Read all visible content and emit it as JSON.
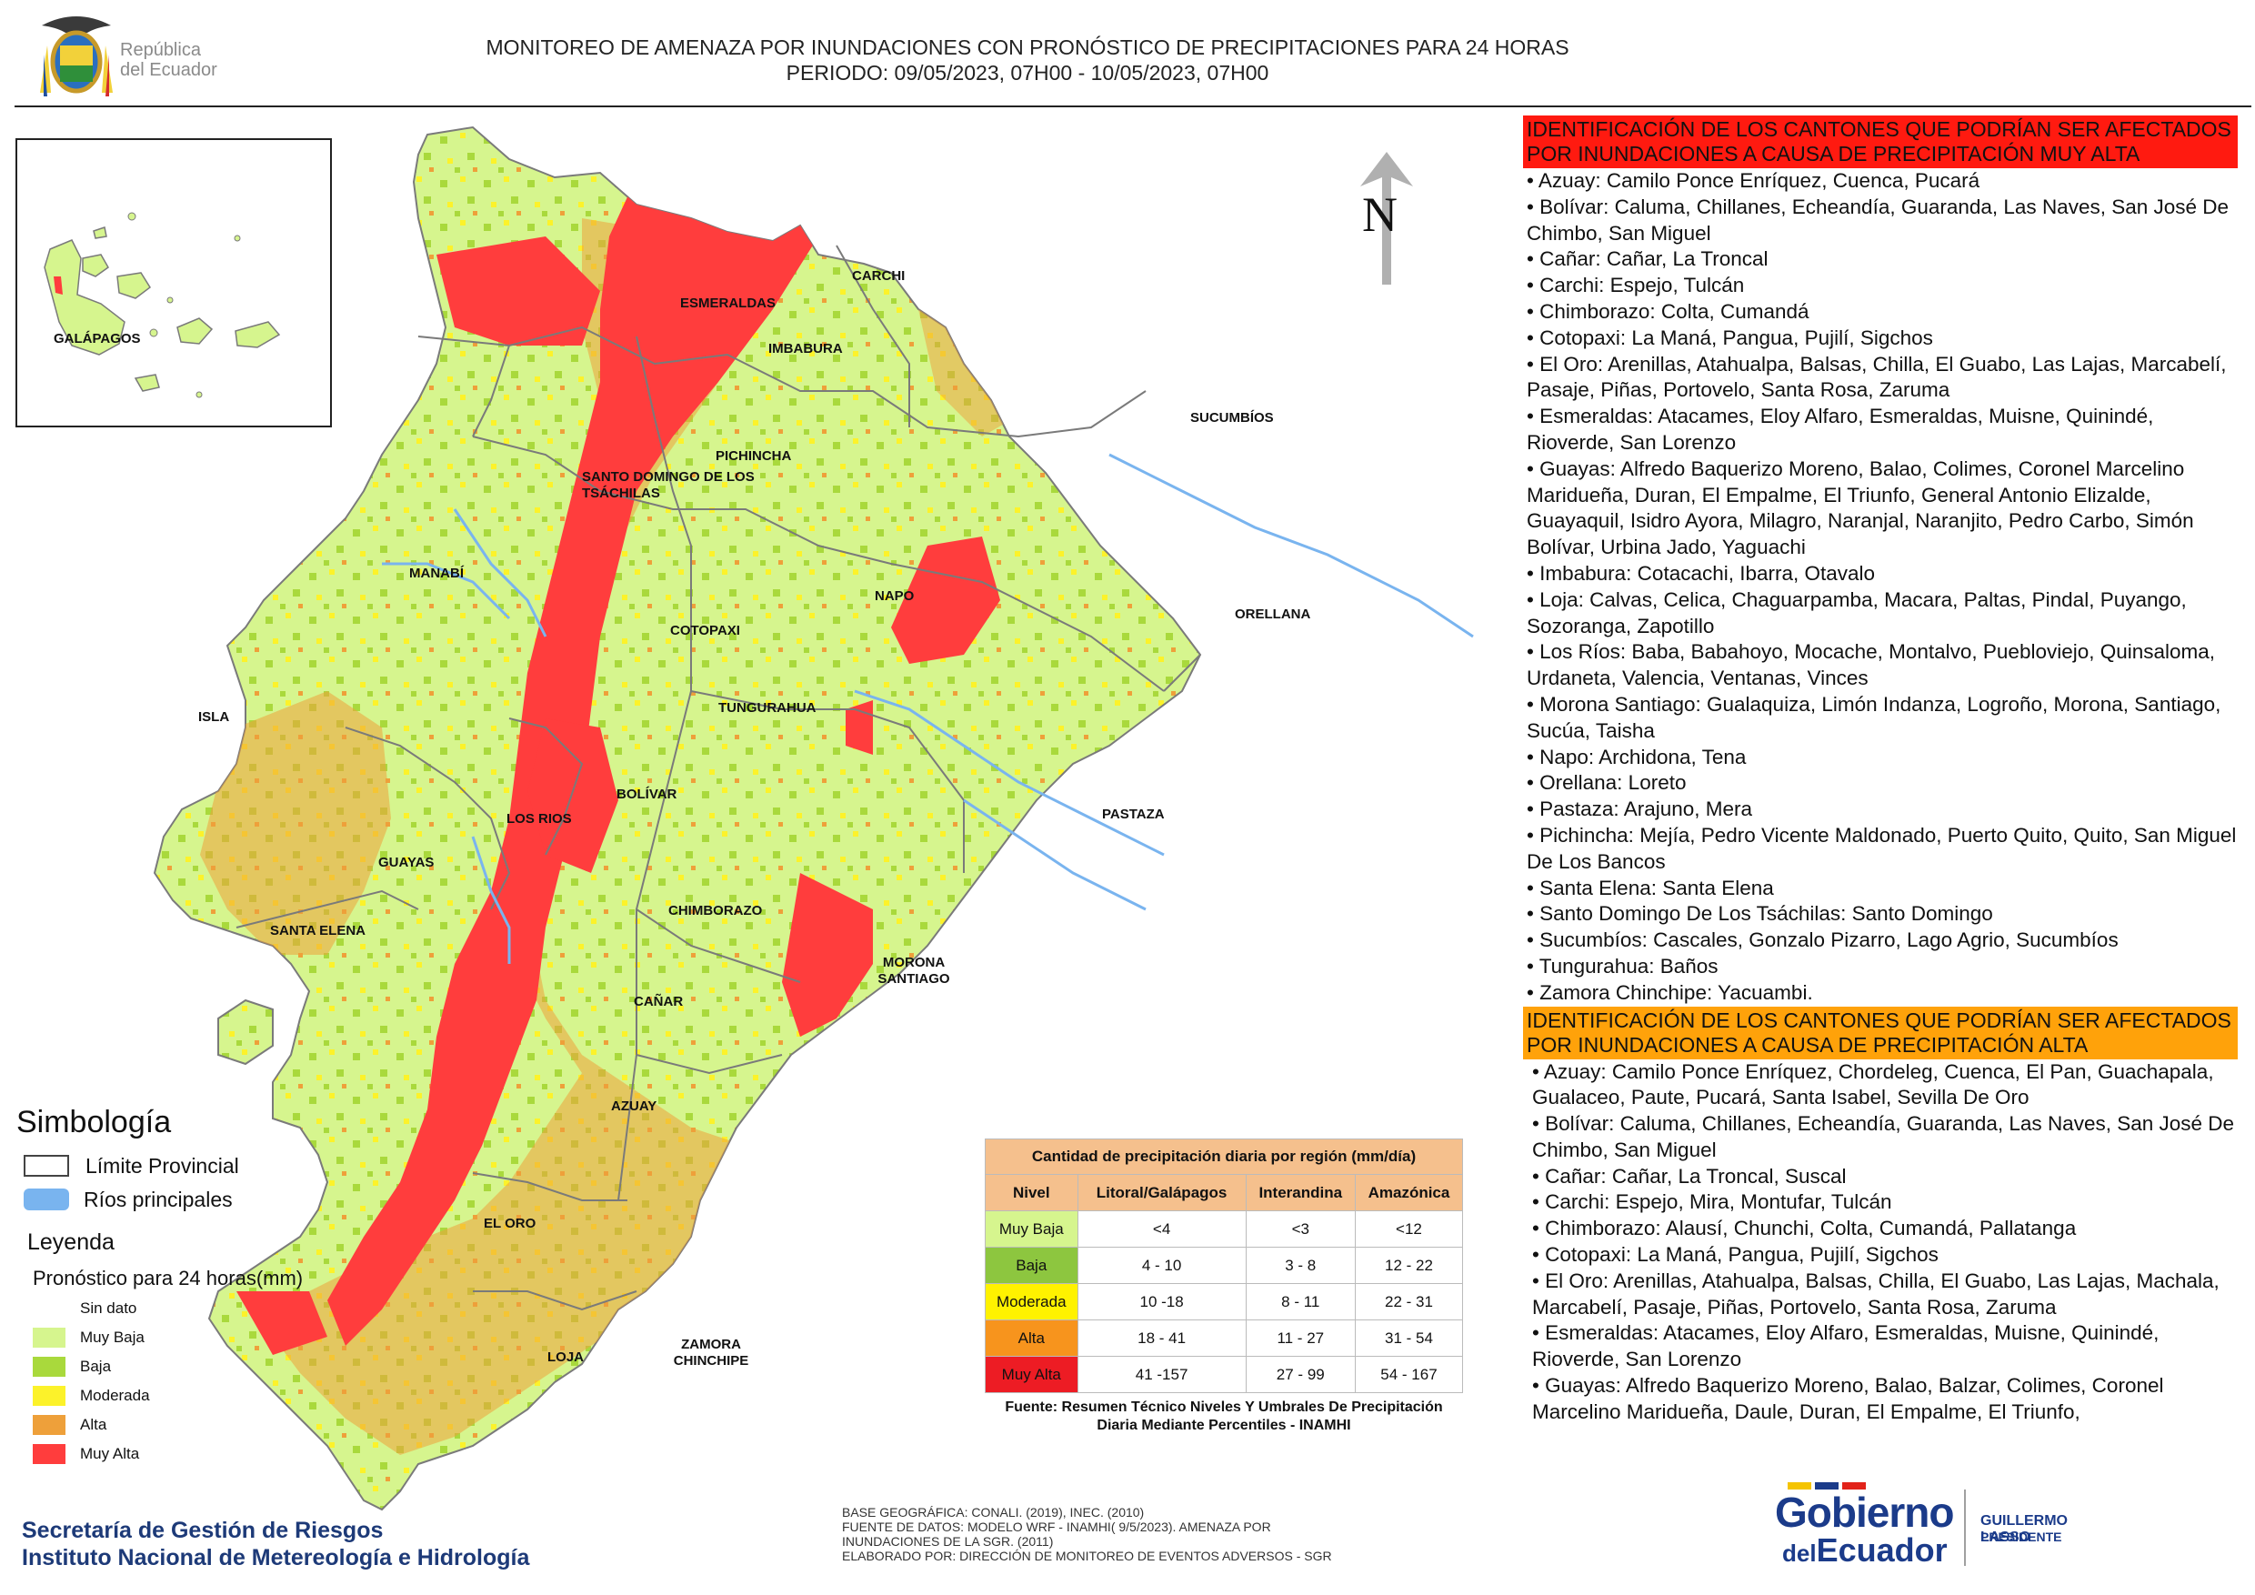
{
  "header": {
    "republica": "República\ndel Ecuador",
    "title_line1": "MONITOREO DE AMENAZA POR INUNDACIONES  CON PRONÓSTICO DE  PRECIPITACIONES PARA 24 HORAS",
    "title_line2": "PERIODO: 09/05/2023, 07H00 - 10/05/2023, 07H00"
  },
  "map": {
    "galapagos_label": "GALÁPAGOS",
    "north_label": "N",
    "provinces": [
      "CARCHI",
      "ESMERALDAS",
      "IMBABURA",
      "SUCUMBÍOS",
      "PICHINCHA",
      "SANTO DOMINGO DE LOS TSÁCHILAS",
      "MANABÍ",
      "NAPO",
      "ORELLANA",
      "COTOPAXI",
      "TUNGURAHUA",
      "ISLA",
      "BOLÍVAR",
      "LOS RIOS",
      "PASTAZA",
      "GUAYAS",
      "CHIMBORAZO",
      "SANTA ELENA",
      "MORONA SANTIAGO",
      "CAÑAR",
      "AZUAY",
      "EL ORO",
      "LOJA",
      "ZAMORA CHINCHIPE"
    ],
    "colors": {
      "muy_baja": "#d6f58e",
      "baja": "#a9d93c",
      "moderada": "#fcf22a",
      "alta": "#eea03a",
      "muy_alta": "#ff3d3d",
      "river": "#79b4ef",
      "border": "#7a7a7a"
    }
  },
  "legend": {
    "simbologia": "Simbología",
    "limite": "Límite Provincial",
    "rios": "Ríos principales",
    "leyenda": "Leyenda",
    "pronostico": "Pronóstico para 24 horas(mm)",
    "classes": [
      {
        "label": "Sin dato",
        "color": "#ffffff"
      },
      {
        "label": " Muy Baja",
        "color": "#d6f58e"
      },
      {
        "label": "Baja",
        "color": "#a9d93c"
      },
      {
        "label": "Moderada",
        "color": "#fcf22a"
      },
      {
        "label": "Alta",
        "color": "#eea03a"
      },
      {
        "label": "Muy Alta",
        "color": "#ff3d3d"
      }
    ]
  },
  "table": {
    "caption": "Cantidad de precipitación diaria por región (mm/día)",
    "columns": [
      "Nivel",
      "Litoral/Galápagos",
      "Interandina",
      "Amazónica"
    ],
    "rows": [
      {
        "nivel": "Muy Baja",
        "color": "#d6f58e",
        "litoral": "<4",
        "interandina": "<3",
        "amazonica": "<12"
      },
      {
        "nivel": "Baja",
        "color": "#8dc63f",
        "litoral": "4 - 10",
        "interandina": "3 - 8",
        "amazonica": "12 - 22"
      },
      {
        "nivel": "Moderada",
        "color": "#fff200",
        "litoral": "10 -18",
        "interandina": "8 - 11",
        "amazonica": "22 - 31"
      },
      {
        "nivel": "Alta",
        "color": "#f7941d",
        "litoral": "18 - 41",
        "interandina": "11 - 27",
        "amazonica": "31 - 54"
      },
      {
        "nivel": "Muy Alta",
        "color": "#ed1c24",
        "litoral": "41 -157",
        "interandina": "27 - 99",
        "amazonica": "54 - 167"
      }
    ],
    "source": "Fuente: Resumen Técnico Niveles Y Umbrales De Precipitación Diaria Mediante Percentiles - INAMHI"
  },
  "credits": {
    "line1": "BASE GEOGRÁFICA: CONALI. (2019), INEC. (2010)",
    "line2": "FUENTE DE DATOS: MODELO WRF - INAMHI( 9/5/2023).  AMENAZA POR INUNDACIONES DE LA SGR. (2011)",
    "line3": "ELABORADO POR: DIRECCIÓN DE MONITOREO DE EVENTOS ADVERSOS - SGR"
  },
  "footer": {
    "sgr": "Secretaría de Gestión de Riesgos",
    "inamhi": "Instituto Nacional de Metereología e Hidrología"
  },
  "gobierno": {
    "line1": "Gobierno",
    "line2a": "del",
    "line2b": "Ecuador",
    "president_name": "GUILLERMO LASSO",
    "president_title": "PRESIDENTE"
  },
  "right_panel": {
    "muy_alta_header": "IDENTIFICACIÓN DE LOS CANTONES QUE PODRÍAN SER AFECTADOS POR INUNDACIONES  A CAUSA DE PRECIPITACIÓN MUY ALTA",
    "muy_alta_list": [
      "• Azuay: Camilo Ponce Enríquez, Cuenca, Pucará",
      "• Bolívar: Caluma, Chillanes, Echeandía, Guaranda, Las Naves, San José De Chimbo, San Miguel",
      "• Cañar: Cañar, La Troncal",
      "• Carchi: Espejo, Tulcán",
      "• Chimborazo: Colta, Cumandá",
      "• Cotopaxi: La Maná, Pangua, Pujilí, Sigchos",
      "• El Oro: Arenillas, Atahualpa, Balsas, Chilla, El Guabo, Las Lajas, Marcabelí, Pasaje, Piñas, Portovelo, Santa Rosa, Zaruma",
      "• Esmeraldas: Atacames, Eloy Alfaro, Esmeraldas, Muisne, Quinindé, Rioverde, San Lorenzo",
      "• Guayas: Alfredo Baquerizo Moreno, Balao, Colimes, Coronel Marcelino Maridueña, Duran, El Empalme, El Triunfo, General Antonio Elizalde, Guayaquil, Isidro Ayora, Milagro, Naranjal, Naranjito, Pedro Carbo, Simón Bolívar, Urbina Jado, Yaguachi",
      "• Imbabura: Cotacachi, Ibarra, Otavalo",
      "• Loja: Calvas, Celica, Chaguarpamba, Macara, Paltas, Pindal, Puyango, Sozoranga, Zapotillo",
      "• Los Ríos: Baba, Babahoyo, Mocache, Montalvo, Puebloviejo, Quinsaloma, Urdaneta, Valencia, Ventanas, Vinces",
      "• Morona Santiago: Gualaquiza, Limón Indanza, Logroño, Morona, Santiago, Sucúa, Taisha",
      "• Napo: Archidona, Tena",
      "• Orellana: Loreto",
      "• Pastaza: Arajuno, Mera",
      "• Pichincha: Mejía, Pedro Vicente Maldonado, Puerto Quito, Quito, San Miguel De Los Bancos",
      "• Santa Elena: Santa Elena",
      "• Santo Domingo De Los Tsáchilas: Santo Domingo",
      "• Sucumbíos: Cascales, Gonzalo Pizarro, Lago Agrio, Sucumbíos",
      "• Tungurahua: Baños",
      "• Zamora Chinchipe: Yacuambi."
    ],
    "alta_header": "IDENTIFICACIÓN DE LOS CANTONES QUE  PODRÍAN SER AFECTADOS POR INUNDACIONES  A CAUSA DE PRECIPITACIÓN ALTA",
    "alta_list": [
      "• Azuay: Camilo Ponce Enríquez, Chordeleg, Cuenca, El Pan, Guachapala, Gualaceo, Paute, Pucará, Santa Isabel, Sevilla De Oro",
      "• Bolívar: Caluma, Chillanes, Echeandía, Guaranda, Las Naves, San José De Chimbo, San Miguel",
      "• Cañar: Cañar, La Troncal, Suscal",
      "• Carchi: Espejo, Mira, Montufar, Tulcán",
      "• Chimborazo: Alausí, Chunchi, Colta, Cumandá, Pallatanga",
      "• Cotopaxi: La Maná, Pangua, Pujilí, Sigchos",
      "• El Oro: Arenillas, Atahualpa, Balsas, Chilla, El Guabo, Las Lajas, Machala, Marcabelí, Pasaje, Piñas, Portovelo, Santa Rosa, Zaruma",
      "• Esmeraldas: Atacames, Eloy Alfaro, Esmeraldas, Muisne, Quinindé, Rioverde, San Lorenzo",
      "• Guayas: Alfredo Baquerizo Moreno, Balao, Balzar, Colimes, Coronel Marcelino Maridueña, Daule, Duran, El Empalme, El Triunfo,"
    ]
  }
}
